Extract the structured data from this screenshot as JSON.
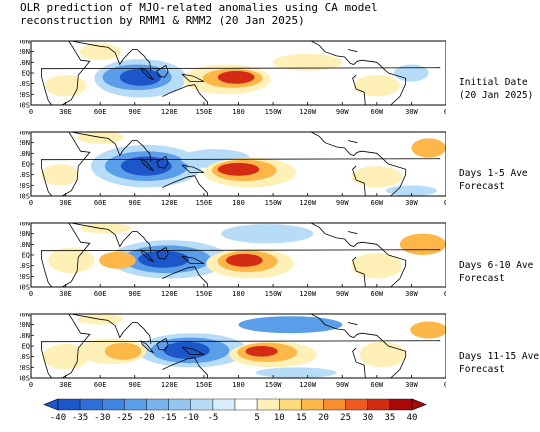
{
  "header": {
    "title_line1": "OLR prediction of MJO-related anomalies using CA model",
    "title_line2": "reconstruction by RMM1 & RMM2 (20 Jan 2025)"
  },
  "lat_labels": [
    "30N",
    "20N",
    "10N",
    "EQ",
    "10S",
    "20S",
    "30S"
  ],
  "lon_labels": [
    "0",
    "30E",
    "60E",
    "90E",
    "120E",
    "150E",
    "180",
    "150W",
    "120W",
    "90W",
    "60W",
    "30W",
    "0"
  ],
  "panels": [
    {
      "caption_line1": "Initial Date",
      "caption_line2": "(20 Jan 2025)"
    },
    {
      "caption_line1": "Days 1-5 Ave",
      "caption_line2": "Forecast"
    },
    {
      "caption_line1": "Days 6-10 Ave",
      "caption_line2": "Forecast"
    },
    {
      "caption_line1": "Days 11-15 Ave",
      "caption_line2": "Forecast"
    }
  ],
  "colorbar": {
    "labels": [
      "-40",
      "-35",
      "-30",
      "-25",
      "-20",
      "-15",
      "-10",
      "-5",
      "5",
      "10",
      "15",
      "20",
      "25",
      "30",
      "35",
      "40"
    ],
    "colors": [
      "#1c56c9",
      "#2c70d8",
      "#3f86e2",
      "#5a9de8",
      "#78b3ee",
      "#95c6f3",
      "#b7dcf8",
      "#d8eefc",
      "#ffffff",
      "#fff0b8",
      "#ffd97a",
      "#fdb748",
      "#f98e2e",
      "#ee5a1f",
      "#d42c14",
      "#a80a08"
    ]
  },
  "colors": {
    "neg_strong": "#1c56c9",
    "neg_mid": "#5a9de8",
    "neg_weak": "#b7dcf8",
    "pos_weak": "#fff0b8",
    "pos_mid": "#fdb748",
    "pos_strong": "#d42c14"
  }
}
